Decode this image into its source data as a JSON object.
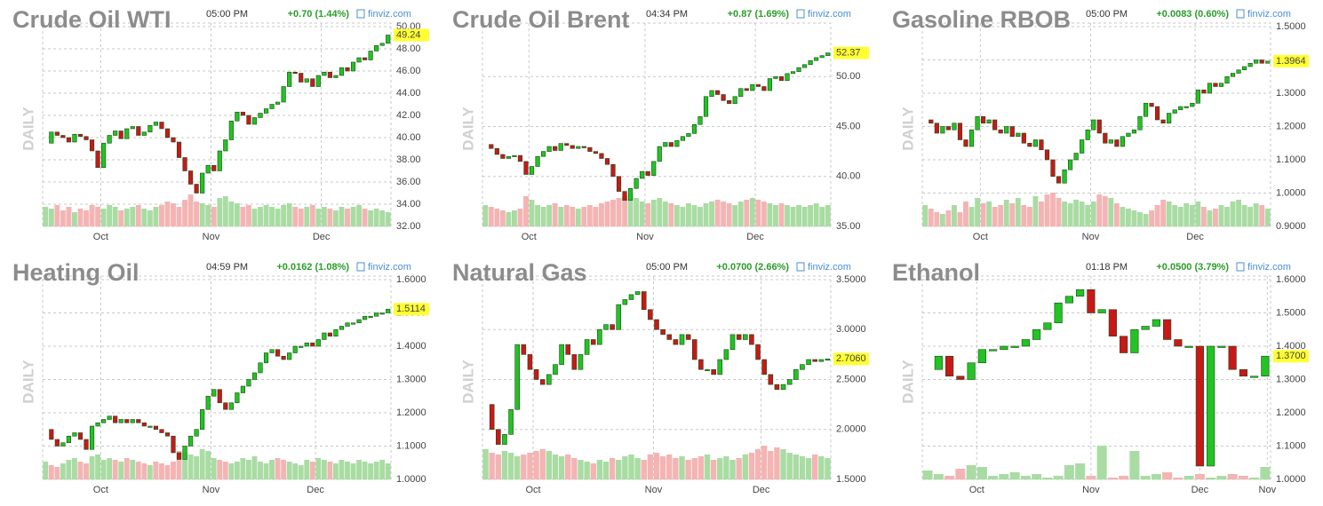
{
  "chart_data": [
    {
      "type": "candlestick",
      "title": "Crude Oil WTI",
      "time": "05:00 PM",
      "change": "+0.70 (1.44%)",
      "source": "finviz.com",
      "period": "DAILY",
      "last_label": "49.24",
      "up_color": "#22c322",
      "down_color": "#c81818",
      "ylim": [
        32,
        50
      ],
      "yticks": [
        {
          "value": 32,
          "label": "32.00"
        },
        {
          "value": 34,
          "label": "34.00"
        },
        {
          "value": 36,
          "label": "36.00"
        },
        {
          "value": 38,
          "label": "38.00"
        },
        {
          "value": 40,
          "label": "40.00"
        },
        {
          "value": 42,
          "label": "42.00"
        },
        {
          "value": 44,
          "label": "44.00"
        },
        {
          "value": 46,
          "label": "46.00"
        },
        {
          "value": 48,
          "label": "48.00"
        },
        {
          "value": 50,
          "label": "50.00"
        }
      ],
      "xticks": [
        {
          "value": 10,
          "label": "Oct"
        },
        {
          "value": 29,
          "label": "Nov"
        },
        {
          "value": 48,
          "label": "Dec"
        }
      ],
      "values": [
        39.5,
        40.5,
        40.2,
        40.0,
        39.6,
        40.3,
        40.1,
        39.8,
        38.8,
        37.3,
        39.5,
        40.2,
        40.6,
        39.9,
        40.8,
        41.0,
        40.2,
        40.5,
        41.1,
        41.4,
        40.8,
        40.0,
        39.6,
        38.2,
        37.0,
        35.8,
        35.0,
        36.8,
        37.5,
        37.0,
        38.8,
        39.8,
        41.5,
        42.3,
        42.0,
        41.2,
        41.8,
        42.2,
        42.6,
        43.0,
        43.2,
        44.6,
        45.9,
        45.8,
        45.0,
        45.3,
        44.6,
        45.6,
        45.9,
        45.4,
        45.6,
        46.3,
        46.0,
        46.8,
        47.2,
        47.0,
        47.8,
        48.3,
        48.5,
        49.24
      ],
      "volume": [
        55,
        50,
        60,
        45,
        55,
        40,
        50,
        45,
        60,
        55,
        50,
        60,
        55,
        45,
        50,
        55,
        60,
        50,
        45,
        55,
        60,
        70,
        65,
        55,
        75,
        90,
        70,
        65,
        60,
        55,
        80,
        85,
        70,
        65,
        55,
        60,
        50,
        55,
        60,
        55,
        50,
        60,
        65,
        55,
        50,
        55,
        60,
        50,
        55,
        50,
        45,
        55,
        50,
        55,
        60,
        50,
        45,
        50,
        45,
        40
      ]
    },
    {
      "type": "candlestick",
      "title": "Crude Oil Brent",
      "time": "04:34 PM",
      "change": "+0.87 (1.69%)",
      "source": "finviz.com",
      "period": "DAILY",
      "last_label": "52.37",
      "up_color": "#22c322",
      "down_color": "#c81818",
      "ylim": [
        35,
        55
      ],
      "yticks": [
        {
          "value": 35,
          "label": "35.00"
        },
        {
          "value": 40,
          "label": "40.00"
        },
        {
          "value": 45,
          "label": "45.00"
        },
        {
          "value": 50,
          "label": "50.00"
        }
      ],
      "xticks": [
        {
          "value": 8,
          "label": "Oct"
        },
        {
          "value": 28,
          "label": "Nov"
        },
        {
          "value": 47,
          "label": "Dec"
        }
      ],
      "values": [
        43.2,
        42.8,
        42.2,
        41.8,
        42.0,
        42.1,
        41.5,
        40.2,
        41.0,
        42.0,
        42.5,
        43.0,
        42.6,
        43.3,
        43.1,
        42.8,
        43.0,
        42.9,
        42.5,
        42.3,
        41.8,
        41.2,
        40.0,
        38.5,
        37.6,
        38.8,
        39.8,
        40.5,
        40.1,
        41.5,
        43.0,
        43.4,
        43.0,
        43.6,
        44.0,
        44.3,
        45.2,
        46.0,
        48.0,
        48.6,
        48.2,
        47.6,
        47.3,
        48.0,
        48.8,
        48.6,
        49.2,
        49.0,
        48.6,
        49.8,
        50.0,
        49.6,
        50.3,
        50.5,
        50.9,
        51.2,
        51.6,
        51.9,
        52.1,
        52.37
      ],
      "volume": [
        60,
        55,
        50,
        45,
        40,
        45,
        50,
        85,
        75,
        60,
        55,
        60,
        65,
        55,
        60,
        55,
        50,
        55,
        60,
        55,
        65,
        70,
        75,
        80,
        85,
        90,
        80,
        70,
        65,
        75,
        80,
        70,
        65,
        60,
        55,
        65,
        60,
        55,
        65,
        70,
        75,
        70,
        65,
        60,
        70,
        75,
        80,
        75,
        70,
        65,
        60,
        65,
        60,
        55,
        60,
        55,
        60,
        65,
        55,
        60
      ]
    },
    {
      "type": "candlestick",
      "title": "Gasoline RBOB",
      "time": "05:00 PM",
      "change": "+0.0083 (0.60%)",
      "source": "finviz.com",
      "period": "DAILY",
      "last_label": "1.3964",
      "up_color": "#22c322",
      "down_color": "#c81818",
      "ylim": [
        0.9,
        1.5
      ],
      "yticks": [
        {
          "value": 0.9,
          "label": "0.9000"
        },
        {
          "value": 1.0,
          "label": "1.0000"
        },
        {
          "value": 1.1,
          "label": "1.1000"
        },
        {
          "value": 1.2,
          "label": "1.2000"
        },
        {
          "value": 1.3,
          "label": "1.3000"
        },
        {
          "value": 1.4,
          "label": "1.4000"
        },
        {
          "value": 1.5,
          "label": "1.5000"
        }
      ],
      "xticks": [
        {
          "value": 10,
          "label": "Oct"
        },
        {
          "value": 29,
          "label": "Nov"
        },
        {
          "value": 47,
          "label": "Dec"
        }
      ],
      "values": [
        1.22,
        1.21,
        1.18,
        1.2,
        1.19,
        1.21,
        1.16,
        1.14,
        1.19,
        1.23,
        1.21,
        1.22,
        1.19,
        1.18,
        1.2,
        1.17,
        1.18,
        1.15,
        1.14,
        1.16,
        1.13,
        1.1,
        1.05,
        1.03,
        1.07,
        1.1,
        1.12,
        1.16,
        1.19,
        1.22,
        1.18,
        1.15,
        1.16,
        1.14,
        1.17,
        1.18,
        1.19,
        1.23,
        1.27,
        1.26,
        1.22,
        1.21,
        1.24,
        1.25,
        1.26,
        1.26,
        1.27,
        1.31,
        1.3,
        1.33,
        1.32,
        1.33,
        1.35,
        1.36,
        1.37,
        1.38,
        1.39,
        1.4,
        1.39,
        1.3964
      ],
      "volume": [
        60,
        50,
        40,
        35,
        45,
        60,
        40,
        70,
        55,
        80,
        65,
        70,
        55,
        60,
        75,
        65,
        80,
        60,
        55,
        85,
        70,
        90,
        95,
        80,
        70,
        65,
        75,
        70,
        60,
        70,
        90,
        85,
        80,
        65,
        55,
        50,
        45,
        40,
        35,
        45,
        60,
        75,
        70,
        60,
        55,
        65,
        60,
        70,
        55,
        45,
        50,
        60,
        55,
        70,
        75,
        60,
        55,
        65,
        60,
        50
      ]
    },
    {
      "type": "candlestick",
      "title": "Heating Oil",
      "time": "04:59 PM",
      "change": "+0.0162 (1.08%)",
      "source": "finviz.com",
      "period": "DAILY",
      "last_label": "1.5114",
      "up_color": "#22c322",
      "down_color": "#c81818",
      "ylim": [
        1.0,
        1.6
      ],
      "yticks": [
        {
          "value": 1.0,
          "label": "1.0000"
        },
        {
          "value": 1.1,
          "label": "1.1000"
        },
        {
          "value": 1.2,
          "label": "1.2000"
        },
        {
          "value": 1.3,
          "label": "1.3000"
        },
        {
          "value": 1.4,
          "label": "1.4000"
        },
        {
          "value": 1.5,
          "label": "1.5000"
        },
        {
          "value": 1.6,
          "label": "1.6000"
        }
      ],
      "xticks": [
        {
          "value": 10,
          "label": "Oct"
        },
        {
          "value": 29,
          "label": "Nov"
        },
        {
          "value": 47,
          "label": "Dec"
        }
      ],
      "values": [
        1.15,
        1.12,
        1.1,
        1.11,
        1.13,
        1.14,
        1.12,
        1.09,
        1.16,
        1.17,
        1.18,
        1.19,
        1.17,
        1.18,
        1.17,
        1.18,
        1.17,
        1.16,
        1.16,
        1.15,
        1.14,
        1.13,
        1.08,
        1.06,
        1.1,
        1.13,
        1.15,
        1.21,
        1.25,
        1.27,
        1.23,
        1.21,
        1.23,
        1.26,
        1.28,
        1.3,
        1.32,
        1.35,
        1.38,
        1.39,
        1.37,
        1.36,
        1.38,
        1.4,
        1.4,
        1.41,
        1.4,
        1.42,
        1.44,
        1.43,
        1.45,
        1.46,
        1.47,
        1.47,
        1.48,
        1.49,
        1.49,
        1.5,
        1.5,
        1.5114
      ],
      "volume": [
        50,
        40,
        35,
        45,
        55,
        60,
        50,
        45,
        65,
        70,
        55,
        60,
        55,
        50,
        60,
        55,
        50,
        45,
        40,
        50,
        45,
        40,
        50,
        80,
        75,
        70,
        65,
        85,
        80,
        60,
        55,
        50,
        45,
        50,
        60,
        55,
        65,
        50,
        45,
        55,
        60,
        55,
        50,
        45,
        40,
        55,
        50,
        60,
        55,
        50,
        45,
        55,
        50,
        45,
        55,
        50,
        45,
        50,
        55,
        45
      ]
    },
    {
      "type": "candlestick",
      "title": "Natural Gas",
      "time": "05:00 PM",
      "change": "+0.0700 (2.66%)",
      "source": "finviz.com",
      "period": "DAILY",
      "last_label": "2.7060",
      "up_color": "#22c322",
      "down_color": "#c81818",
      "ylim": [
        1.5,
        3.5
      ],
      "yticks": [
        {
          "value": 1.5,
          "label": "1.5000"
        },
        {
          "value": 2.0,
          "label": "2.0000"
        },
        {
          "value": 2.5,
          "label": "2.5000"
        },
        {
          "value": 3.0,
          "label": "3.0000"
        },
        {
          "value": 3.5,
          "label": "3.5000"
        }
      ],
      "xticks": [
        {
          "value": 8,
          "label": "Oct"
        },
        {
          "value": 27,
          "label": "Nov"
        },
        {
          "value": 44,
          "label": "Dec"
        }
      ],
      "values": [
        2.25,
        2.0,
        1.85,
        1.95,
        2.2,
        2.85,
        2.75,
        2.6,
        2.5,
        2.45,
        2.55,
        2.65,
        2.85,
        2.75,
        2.6,
        2.75,
        2.9,
        2.85,
        3.0,
        3.05,
        3.0,
        3.25,
        3.3,
        3.35,
        3.38,
        3.2,
        3.1,
        3.0,
        2.95,
        2.9,
        2.85,
        2.95,
        2.9,
        2.7,
        2.6,
        2.6,
        2.55,
        2.7,
        2.8,
        2.95,
        2.9,
        2.95,
        2.85,
        2.7,
        2.55,
        2.45,
        2.4,
        2.45,
        2.5,
        2.6,
        2.65,
        2.7,
        2.68,
        2.7,
        2.706
      ],
      "volume": [
        85,
        75,
        70,
        80,
        75,
        65,
        70,
        75,
        80,
        85,
        80,
        70,
        65,
        70,
        60,
        55,
        50,
        45,
        55,
        50,
        60,
        55,
        65,
        70,
        60,
        55,
        70,
        75,
        65,
        70,
        60,
        65,
        55,
        60,
        65,
        70,
        55,
        60,
        65,
        55,
        60,
        70,
        75,
        85,
        95,
        80,
        90,
        85,
        75,
        70,
        65,
        60,
        70,
        65,
        60
      ]
    },
    {
      "type": "candlestick",
      "title": "Ethanol",
      "time": "01:18 PM",
      "change": "+0.0500 (3.79%)",
      "source": "finviz.com",
      "period": "DAILY",
      "last_label": "1.3700",
      "up_color": "#22c322",
      "down_color": "#c81818",
      "ylim": [
        1.0,
        1.6
      ],
      "yticks": [
        {
          "value": 1.0,
          "label": "1.0000"
        },
        {
          "value": 1.1,
          "label": "1.1000"
        },
        {
          "value": 1.2,
          "label": "1.2000"
        },
        {
          "value": 1.3,
          "label": "1.3000"
        },
        {
          "value": 1.4,
          "label": "1.4000"
        },
        {
          "value": 1.5,
          "label": "1.5000"
        },
        {
          "value": 1.6,
          "label": "1.6000"
        }
      ],
      "xticks": [
        {
          "value": 5,
          "label": "Oct"
        },
        {
          "value": 15.5,
          "label": "Nov"
        },
        {
          "value": 25.5,
          "label": "Dec"
        },
        {
          "value": 31.7,
          "label": "Nov"
        }
      ],
      "values": [
        1.33,
        1.37,
        1.31,
        1.3,
        1.35,
        1.39,
        1.39,
        1.4,
        1.4,
        1.42,
        1.45,
        1.47,
        1.53,
        1.55,
        1.57,
        1.5,
        1.51,
        1.43,
        1.38,
        1.45,
        1.46,
        1.48,
        1.42,
        1.4,
        1.4,
        1.04,
        1.4,
        1.4,
        1.33,
        1.31,
        1.31,
        1.37
      ],
      "volume": [
        25,
        15,
        10,
        30,
        40,
        35,
        10,
        15,
        20,
        10,
        15,
        5,
        10,
        40,
        45,
        10,
        95,
        5,
        10,
        80,
        10,
        15,
        20,
        5,
        10,
        15,
        5,
        10,
        15,
        10,
        5,
        35
      ]
    }
  ]
}
